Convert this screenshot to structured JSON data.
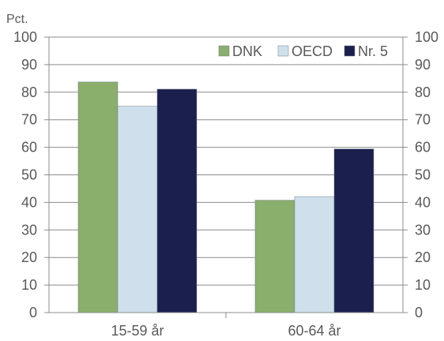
{
  "chart_data": {
    "type": "bar",
    "unit_label": "Pct.",
    "categories": [
      "15-59 år",
      "60-64 år"
    ],
    "series": [
      {
        "name": "DNK",
        "values": [
          83.7,
          40.8
        ],
        "color": "#8aae6b"
      },
      {
        "name": "OECD",
        "values": [
          74.9,
          42.1
        ],
        "color": "#cfe0ec"
      },
      {
        "name": "Nr. 5",
        "values": [
          81.1,
          59.4
        ],
        "color": "#1b1f4d"
      }
    ],
    "ylim": [
      0,
      100
    ],
    "yticks": [
      0,
      10,
      20,
      30,
      40,
      50,
      60,
      70,
      80,
      90,
      100
    ],
    "grid": true,
    "legend_position": "top-right",
    "right_axis": true,
    "colors": {
      "axis": "#8c8c8c",
      "grid": "#8c8c8c",
      "text": "#595959"
    }
  }
}
